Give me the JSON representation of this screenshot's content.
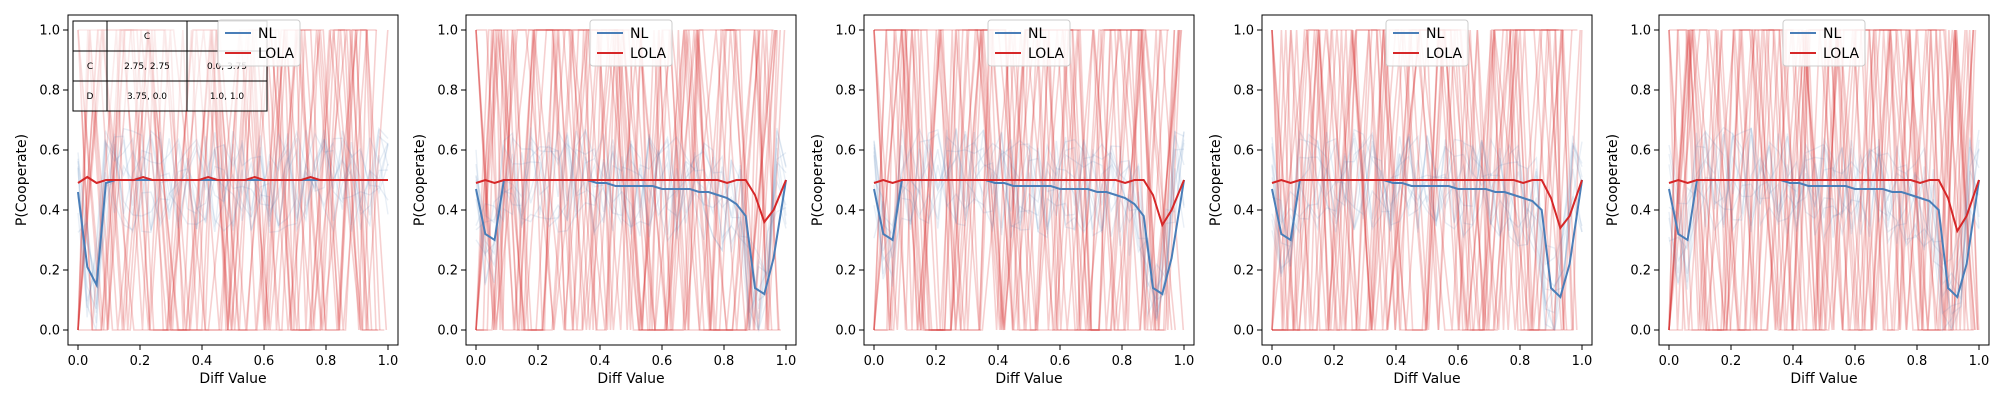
{
  "chart_data": [
    {
      "type": "line",
      "xlabel": "Diff Value",
      "ylabel": "P(Cooperate)",
      "xlim": [
        0.0,
        1.0
      ],
      "ylim": [
        0.0,
        1.0
      ],
      "xticks": [
        "0.0",
        "0.2",
        "0.4",
        "0.6",
        "0.8",
        "1.0"
      ],
      "yticks": [
        "0.0",
        "0.2",
        "0.4",
        "0.6",
        "0.8",
        "1.0"
      ],
      "legend": {
        "position": "top-center",
        "entries": [
          "NL",
          "LOLA"
        ]
      },
      "x": [
        0.0,
        0.03,
        0.06,
        0.09,
        0.12,
        0.15,
        0.18,
        0.21,
        0.24,
        0.27,
        0.3,
        0.33,
        0.36,
        0.39,
        0.42,
        0.45,
        0.48,
        0.51,
        0.54,
        0.57,
        0.6,
        0.63,
        0.66,
        0.69,
        0.72,
        0.75,
        0.78,
        0.81,
        0.84,
        0.87,
        0.9,
        0.93,
        0.96,
        1.0
      ],
      "series": [
        {
          "name": "NL",
          "color": "#4a7eb8",
          "values": [
            0.46,
            0.21,
            0.15,
            0.49,
            0.5,
            0.5,
            0.5,
            0.5,
            0.5,
            0.5,
            0.5,
            0.5,
            0.5,
            0.5,
            0.5,
            0.5,
            0.5,
            0.5,
            0.5,
            0.5,
            0.5,
            0.5,
            0.5,
            0.5,
            0.5,
            0.5,
            0.5,
            0.5,
            0.5,
            0.5,
            0.5,
            0.5,
            0.5,
            0.5
          ]
        },
        {
          "name": "LOLA",
          "color": "#d62728",
          "values": [
            0.49,
            0.51,
            0.49,
            0.5,
            0.5,
            0.5,
            0.5,
            0.51,
            0.5,
            0.5,
            0.5,
            0.5,
            0.5,
            0.5,
            0.51,
            0.5,
            0.5,
            0.5,
            0.5,
            0.51,
            0.5,
            0.5,
            0.5,
            0.5,
            0.5,
            0.51,
            0.5,
            0.5,
            0.5,
            0.5,
            0.5,
            0.5,
            0.5,
            0.5
          ]
        }
      ],
      "payoff_table": {
        "header": [
          "",
          "C",
          ""
        ],
        "rows": [
          [
            "C",
            "2.75, 2.75",
            "0.0, 3.75"
          ],
          [
            "D",
            "3.75, 0.0",
            "1.0, 1.0"
          ]
        ]
      }
    },
    {
      "type": "line",
      "xlabel": "Diff Value",
      "ylabel": "P(Cooperate)",
      "xlim": [
        0.0,
        1.0
      ],
      "ylim": [
        0.0,
        1.0
      ],
      "xticks": [
        "0.0",
        "0.2",
        "0.4",
        "0.6",
        "0.8",
        "1.0"
      ],
      "yticks": [
        "0.0",
        "0.2",
        "0.4",
        "0.6",
        "0.8",
        "1.0"
      ],
      "legend": {
        "position": "top-center",
        "entries": [
          "NL",
          "LOLA"
        ]
      },
      "x": [
        0.0,
        0.03,
        0.06,
        0.09,
        0.12,
        0.15,
        0.18,
        0.21,
        0.24,
        0.27,
        0.3,
        0.33,
        0.36,
        0.39,
        0.42,
        0.45,
        0.48,
        0.51,
        0.54,
        0.57,
        0.6,
        0.63,
        0.66,
        0.69,
        0.72,
        0.75,
        0.78,
        0.81,
        0.84,
        0.87,
        0.9,
        0.93,
        0.96,
        1.0
      ],
      "series": [
        {
          "name": "NL",
          "color": "#4a7eb8",
          "values": [
            0.47,
            0.32,
            0.3,
            0.5,
            0.5,
            0.5,
            0.5,
            0.5,
            0.5,
            0.5,
            0.5,
            0.5,
            0.5,
            0.49,
            0.49,
            0.48,
            0.48,
            0.48,
            0.48,
            0.48,
            0.47,
            0.47,
            0.47,
            0.47,
            0.46,
            0.46,
            0.45,
            0.44,
            0.42,
            0.38,
            0.14,
            0.12,
            0.24,
            0.5
          ]
        },
        {
          "name": "LOLA",
          "color": "#d62728",
          "values": [
            0.49,
            0.5,
            0.49,
            0.5,
            0.5,
            0.5,
            0.5,
            0.5,
            0.5,
            0.5,
            0.5,
            0.5,
            0.5,
            0.5,
            0.5,
            0.5,
            0.5,
            0.5,
            0.5,
            0.5,
            0.5,
            0.5,
            0.5,
            0.5,
            0.5,
            0.5,
            0.5,
            0.49,
            0.5,
            0.5,
            0.45,
            0.36,
            0.4,
            0.5
          ]
        }
      ]
    },
    {
      "type": "line",
      "xlabel": "Diff Value",
      "ylabel": "P(Cooperate)",
      "xlim": [
        0.0,
        1.0
      ],
      "ylim": [
        0.0,
        1.0
      ],
      "xticks": [
        "0.0",
        "0.2",
        "0.4",
        "0.6",
        "0.8",
        "1.0"
      ],
      "yticks": [
        "0.0",
        "0.2",
        "0.4",
        "0.6",
        "0.8",
        "1.0"
      ],
      "legend": {
        "position": "top-center",
        "entries": [
          "NL",
          "LOLA"
        ]
      },
      "x": [
        0.0,
        0.03,
        0.06,
        0.09,
        0.12,
        0.15,
        0.18,
        0.21,
        0.24,
        0.27,
        0.3,
        0.33,
        0.36,
        0.39,
        0.42,
        0.45,
        0.48,
        0.51,
        0.54,
        0.57,
        0.6,
        0.63,
        0.66,
        0.69,
        0.72,
        0.75,
        0.78,
        0.81,
        0.84,
        0.87,
        0.9,
        0.93,
        0.96,
        1.0
      ],
      "series": [
        {
          "name": "NL",
          "color": "#4a7eb8",
          "values": [
            0.47,
            0.32,
            0.3,
            0.5,
            0.5,
            0.5,
            0.5,
            0.5,
            0.5,
            0.5,
            0.5,
            0.5,
            0.5,
            0.49,
            0.49,
            0.48,
            0.48,
            0.48,
            0.48,
            0.48,
            0.47,
            0.47,
            0.47,
            0.47,
            0.46,
            0.46,
            0.45,
            0.44,
            0.42,
            0.38,
            0.14,
            0.12,
            0.24,
            0.5
          ]
        },
        {
          "name": "LOLA",
          "color": "#d62728",
          "values": [
            0.49,
            0.5,
            0.49,
            0.5,
            0.5,
            0.5,
            0.5,
            0.5,
            0.5,
            0.5,
            0.5,
            0.5,
            0.5,
            0.5,
            0.5,
            0.5,
            0.5,
            0.5,
            0.5,
            0.5,
            0.5,
            0.5,
            0.5,
            0.5,
            0.5,
            0.5,
            0.5,
            0.49,
            0.5,
            0.5,
            0.45,
            0.35,
            0.4,
            0.5
          ]
        }
      ]
    },
    {
      "type": "line",
      "xlabel": "Diff Value",
      "ylabel": "P(Cooperate)",
      "xlim": [
        0.0,
        1.0
      ],
      "ylim": [
        0.0,
        1.0
      ],
      "xticks": [
        "0.0",
        "0.2",
        "0.4",
        "0.6",
        "0.8",
        "1.0"
      ],
      "yticks": [
        "0.0",
        "0.2",
        "0.4",
        "0.6",
        "0.8",
        "1.0"
      ],
      "legend": {
        "position": "top-center",
        "entries": [
          "NL",
          "LOLA"
        ]
      },
      "x": [
        0.0,
        0.03,
        0.06,
        0.09,
        0.12,
        0.15,
        0.18,
        0.21,
        0.24,
        0.27,
        0.3,
        0.33,
        0.36,
        0.39,
        0.42,
        0.45,
        0.48,
        0.51,
        0.54,
        0.57,
        0.6,
        0.63,
        0.66,
        0.69,
        0.72,
        0.75,
        0.78,
        0.81,
        0.84,
        0.87,
        0.9,
        0.93,
        0.96,
        1.0
      ],
      "series": [
        {
          "name": "NL",
          "color": "#4a7eb8",
          "values": [
            0.47,
            0.32,
            0.3,
            0.5,
            0.5,
            0.5,
            0.5,
            0.5,
            0.5,
            0.5,
            0.5,
            0.5,
            0.5,
            0.49,
            0.49,
            0.48,
            0.48,
            0.48,
            0.48,
            0.48,
            0.47,
            0.47,
            0.47,
            0.47,
            0.46,
            0.46,
            0.45,
            0.44,
            0.43,
            0.4,
            0.14,
            0.11,
            0.22,
            0.5
          ]
        },
        {
          "name": "LOLA",
          "color": "#d62728",
          "values": [
            0.49,
            0.5,
            0.49,
            0.5,
            0.5,
            0.5,
            0.5,
            0.5,
            0.5,
            0.5,
            0.5,
            0.5,
            0.5,
            0.5,
            0.5,
            0.5,
            0.5,
            0.5,
            0.5,
            0.5,
            0.5,
            0.5,
            0.5,
            0.5,
            0.5,
            0.5,
            0.5,
            0.49,
            0.5,
            0.5,
            0.44,
            0.34,
            0.38,
            0.5
          ]
        }
      ]
    },
    {
      "type": "line",
      "xlabel": "Diff Value",
      "ylabel": "P(Cooperate)",
      "xlim": [
        0.0,
        1.0
      ],
      "ylim": [
        0.0,
        1.0
      ],
      "xticks": [
        "0.0",
        "0.2",
        "0.4",
        "0.6",
        "0.8",
        "1.0"
      ],
      "yticks": [
        "0.0",
        "0.2",
        "0.4",
        "0.6",
        "0.8",
        "1.0"
      ],
      "legend": {
        "position": "top-center",
        "entries": [
          "NL",
          "LOLA"
        ]
      },
      "x": [
        0.0,
        0.03,
        0.06,
        0.09,
        0.12,
        0.15,
        0.18,
        0.21,
        0.24,
        0.27,
        0.3,
        0.33,
        0.36,
        0.39,
        0.42,
        0.45,
        0.48,
        0.51,
        0.54,
        0.57,
        0.6,
        0.63,
        0.66,
        0.69,
        0.72,
        0.75,
        0.78,
        0.81,
        0.84,
        0.87,
        0.9,
        0.93,
        0.96,
        1.0
      ],
      "series": [
        {
          "name": "NL",
          "color": "#4a7eb8",
          "values": [
            0.47,
            0.32,
            0.3,
            0.5,
            0.5,
            0.5,
            0.5,
            0.5,
            0.5,
            0.5,
            0.5,
            0.5,
            0.5,
            0.49,
            0.49,
            0.48,
            0.48,
            0.48,
            0.48,
            0.48,
            0.47,
            0.47,
            0.47,
            0.47,
            0.46,
            0.46,
            0.45,
            0.44,
            0.43,
            0.4,
            0.14,
            0.11,
            0.22,
            0.5
          ]
        },
        {
          "name": "LOLA",
          "color": "#d62728",
          "values": [
            0.49,
            0.5,
            0.49,
            0.5,
            0.5,
            0.5,
            0.5,
            0.5,
            0.5,
            0.5,
            0.5,
            0.5,
            0.5,
            0.5,
            0.5,
            0.5,
            0.5,
            0.5,
            0.5,
            0.5,
            0.5,
            0.5,
            0.5,
            0.5,
            0.5,
            0.5,
            0.5,
            0.49,
            0.5,
            0.5,
            0.44,
            0.33,
            0.38,
            0.5
          ]
        }
      ]
    }
  ]
}
